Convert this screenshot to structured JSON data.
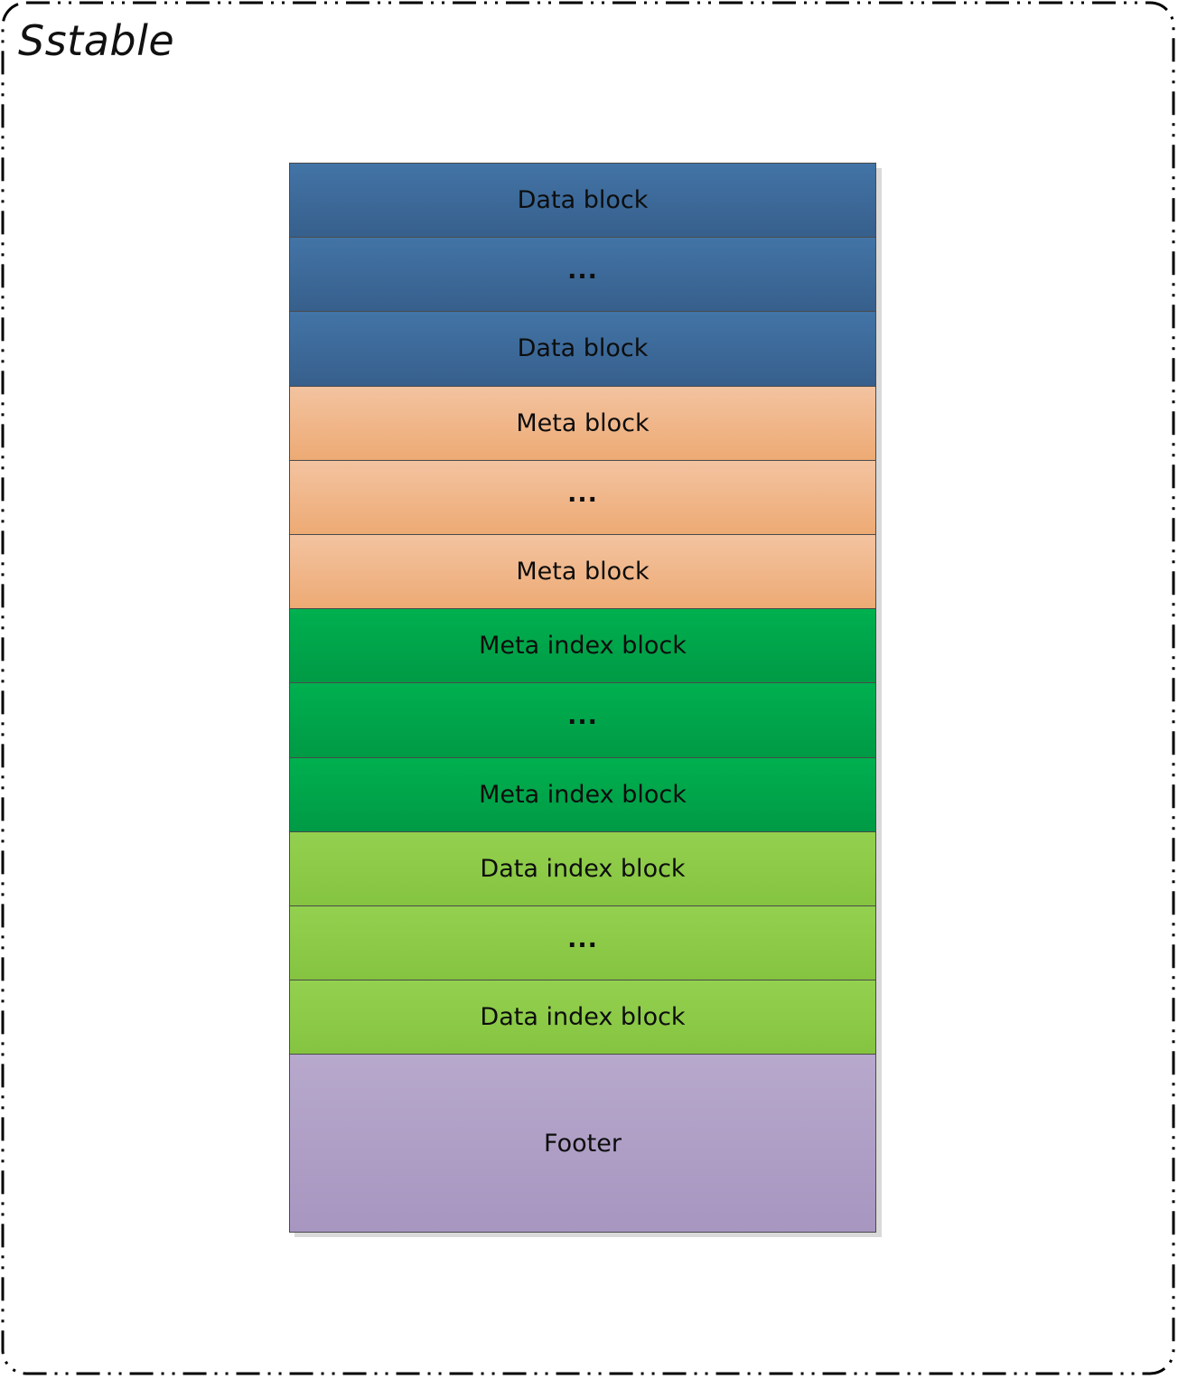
{
  "container": {
    "title": "Sstable"
  },
  "colors": {
    "data": [
      "#4274a6",
      "#375f8c"
    ],
    "meta": [
      "#f3c3a0",
      "#edaa74"
    ],
    "meta_index": [
      "#00b04f",
      "#009a45"
    ],
    "data_index": [
      "#93d04f",
      "#85c440"
    ],
    "footer": [
      "#b7a8cc",
      "#a796c0"
    ],
    "frame_stroke": "#000000",
    "text": "#0d0d0d"
  },
  "blocks": [
    {
      "label": "Data block",
      "group": "data"
    },
    {
      "label": "...",
      "group": "data"
    },
    {
      "label": "Data block",
      "group": "data"
    },
    {
      "label": "Meta block",
      "group": "meta"
    },
    {
      "label": "...",
      "group": "meta"
    },
    {
      "label": "Meta block",
      "group": "meta"
    },
    {
      "label": "Meta index block",
      "group": "meta_index"
    },
    {
      "label": "...",
      "group": "meta_index"
    },
    {
      "label": "Meta index block",
      "group": "meta_index"
    },
    {
      "label": "Data index block",
      "group": "data_index"
    },
    {
      "label": "...",
      "group": "data_index"
    },
    {
      "label": "Data index block",
      "group": "data_index"
    },
    {
      "label": "Footer",
      "group": "footer"
    }
  ]
}
